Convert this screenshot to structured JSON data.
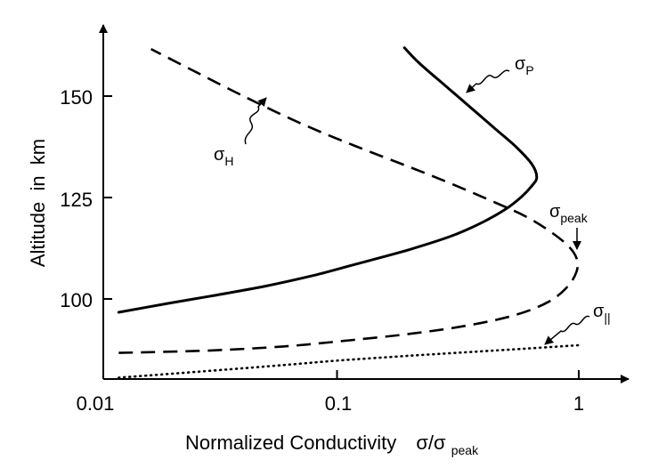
{
  "chart_data": {
    "type": "line",
    "title": "",
    "xlabel": "Normalized Conductivity",
    "xlabel_symbol": "σ/σ",
    "xlabel_symbol_sub": "peak",
    "ylabel": "Altitude  in  km",
    "xscale": "log",
    "xlim": [
      0.01,
      1.2
    ],
    "ylim": [
      80,
      168
    ],
    "xticks": [
      {
        "value": 0.01,
        "label": "0.01"
      },
      {
        "value": 0.1,
        "label": "0.1"
      },
      {
        "value": 1,
        "label": "1"
      }
    ],
    "yticks": [
      {
        "value": 100,
        "label": "100"
      },
      {
        "value": 125,
        "label": "125"
      },
      {
        "value": 150,
        "label": "150"
      }
    ],
    "grid": false,
    "legend": "none",
    "series": [
      {
        "name": "σ_P",
        "line_style": "solid",
        "points": [
          [
            0.0125,
            96.7
          ],
          [
            0.02,
            98.9
          ],
          [
            0.03,
            100.7
          ],
          [
            0.05,
            103.1
          ],
          [
            0.08,
            105.8
          ],
          [
            0.12,
            108.6
          ],
          [
            0.2,
            112.2
          ],
          [
            0.3,
            115.6
          ],
          [
            0.4,
            118.9
          ],
          [
            0.5,
            122.2
          ],
          [
            0.58,
            125.2
          ],
          [
            0.64,
            127.9
          ],
          [
            0.67,
            130.0
          ],
          [
            0.64,
            133.2
          ],
          [
            0.55,
            137.5
          ],
          [
            0.45,
            142.0
          ],
          [
            0.36,
            147.0
          ],
          [
            0.28,
            152.6
          ],
          [
            0.22,
            158.0
          ],
          [
            0.19,
            161.9
          ]
        ]
      },
      {
        "name": "σ_H",
        "line_style": "dashed",
        "points": [
          [
            0.0125,
            86.7
          ],
          [
            0.03,
            87.3
          ],
          [
            0.06,
            88.3
          ],
          [
            0.1,
            89.5
          ],
          [
            0.2,
            91.4
          ],
          [
            0.35,
            93.5
          ],
          [
            0.55,
            96.1
          ],
          [
            0.75,
            99.3
          ],
          [
            0.9,
            103.1
          ],
          [
            0.98,
            106.8
          ],
          [
            0.98,
            110.0
          ],
          [
            0.9,
            113.2
          ],
          [
            0.75,
            116.9
          ],
          [
            0.6,
            120.4
          ],
          [
            0.45,
            123.8
          ],
          [
            0.3,
            128.3
          ],
          [
            0.2,
            132.5
          ],
          [
            0.12,
            137.6
          ],
          [
            0.07,
            143.4
          ],
          [
            0.04,
            150.3
          ],
          [
            0.025,
            156.5
          ],
          [
            0.017,
            161.6
          ]
        ]
      },
      {
        "name": "σ_||",
        "line_style": "dotted",
        "points": [
          [
            0.0125,
            80.6
          ],
          [
            0.03,
            82.3
          ],
          [
            0.06,
            83.7
          ],
          [
            0.1,
            84.8
          ],
          [
            0.2,
            86.0
          ],
          [
            0.4,
            87.1
          ],
          [
            0.7,
            88.0
          ],
          [
            1.0,
            88.6
          ]
        ]
      }
    ],
    "annotations": [
      {
        "symbol": "σ",
        "subscript": "P",
        "target": [
          0.45,
          142.0
        ]
      },
      {
        "symbol": "σ",
        "subscript": "H",
        "target": [
          0.055,
          149.5
        ]
      },
      {
        "symbol": "σ",
        "subscript": "peak",
        "target": [
          0.98,
          111.5
        ]
      },
      {
        "symbol": "σ",
        "subscript": "||",
        "target": [
          0.8,
          88.3
        ]
      }
    ]
  }
}
